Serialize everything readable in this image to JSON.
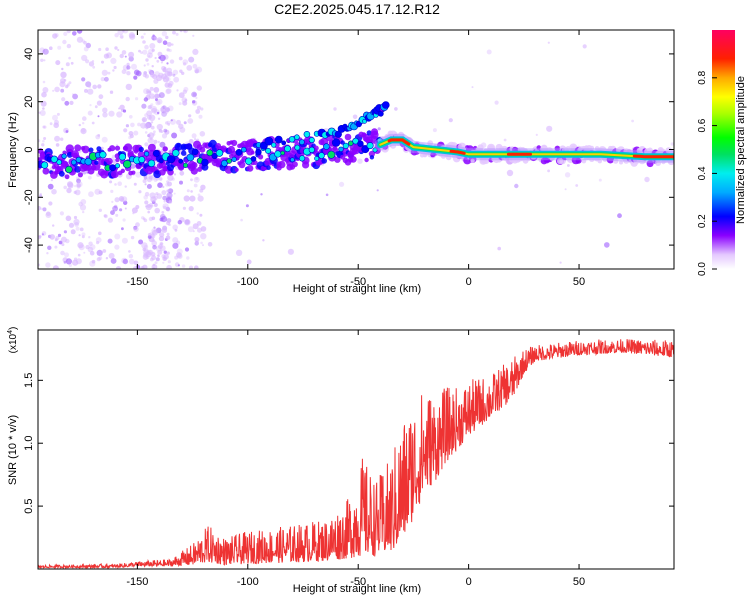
{
  "chart_data": [
    {
      "type": "heatmap",
      "title": "C2E2.2025.045.17.12.R12",
      "xlabel": "Height of straight line (km)",
      "ylabel": "Frequency (Hz)",
      "xlim": [
        -195,
        93
      ],
      "ylim": [
        -50,
        50
      ],
      "xticks": [
        -150,
        -100,
        -50,
        0,
        50
      ],
      "yticks": [
        -40,
        -20,
        0,
        20,
        40
      ],
      "colorbar": {
        "label": "Normalized spectral amplitude",
        "range": [
          0.0,
          1.0
        ],
        "ticks": [
          0.0,
          0.2,
          0.4,
          0.6,
          0.8
        ]
      },
      "ridge": [
        {
          "x": -195,
          "y": -6
        },
        {
          "x": -170,
          "y": -5
        },
        {
          "x": -150,
          "y": -5
        },
        {
          "x": -130,
          "y": -4
        },
        {
          "x": -110,
          "y": -3
        },
        {
          "x": -90,
          "y": -2
        },
        {
          "x": -70,
          "y": -1
        },
        {
          "x": -50,
          "y": 1
        },
        {
          "x": -40,
          "y": 2
        },
        {
          "x": -35,
          "y": 4
        },
        {
          "x": -30,
          "y": 4
        },
        {
          "x": -25,
          "y": 1
        },
        {
          "x": -15,
          "y": 0
        },
        {
          "x": -5,
          "y": -1
        },
        {
          "x": 0,
          "y": -2
        },
        {
          "x": 20,
          "y": -2
        },
        {
          "x": 40,
          "y": -2
        },
        {
          "x": 60,
          "y": -2
        },
        {
          "x": 80,
          "y": -3
        },
        {
          "x": 93,
          "y": -3
        }
      ],
      "upper_branch": [
        {
          "x": -95,
          "y": 2
        },
        {
          "x": -80,
          "y": 4
        },
        {
          "x": -65,
          "y": 6
        },
        {
          "x": -55,
          "y": 9
        },
        {
          "x": -48,
          "y": 12
        },
        {
          "x": -42,
          "y": 15
        },
        {
          "x": -37,
          "y": 18
        }
      ]
    },
    {
      "type": "line",
      "xlabel": "Height of straight line (km)",
      "ylabel": "SNR (10 * v/v)",
      "y_multiplier": "(x10",
      "y_multiplier_exp": "4",
      "y_multiplier_close": ")",
      "xlim": [
        -195,
        93
      ],
      "ylim": [
        0,
        1.9
      ],
      "xticks": [
        -150,
        -100,
        -50,
        0,
        50
      ],
      "yticks": [
        0.5,
        1.0,
        1.5
      ],
      "ytick_labels": [
        "0.5",
        "1.0",
        "1.5"
      ],
      "series": [
        {
          "name": "SNR",
          "color": "#ee3333",
          "envelope": [
            {
              "x": -195,
              "low": 0.01,
              "high": 0.03
            },
            {
              "x": -160,
              "low": 0.01,
              "high": 0.04
            },
            {
              "x": -150,
              "low": 0.02,
              "high": 0.06
            },
            {
              "x": -135,
              "low": 0.02,
              "high": 0.08
            },
            {
              "x": -125,
              "low": 0.03,
              "high": 0.2
            },
            {
              "x": -118,
              "low": 0.05,
              "high": 0.35
            },
            {
              "x": -110,
              "low": 0.03,
              "high": 0.25
            },
            {
              "x": -100,
              "low": 0.04,
              "high": 0.3
            },
            {
              "x": -80,
              "low": 0.05,
              "high": 0.35
            },
            {
              "x": -65,
              "low": 0.06,
              "high": 0.4
            },
            {
              "x": -55,
              "low": 0.08,
              "high": 0.55
            },
            {
              "x": -48,
              "low": 0.1,
              "high": 0.9
            },
            {
              "x": -42,
              "low": 0.1,
              "high": 0.7
            },
            {
              "x": -35,
              "low": 0.12,
              "high": 0.9
            },
            {
              "x": -30,
              "low": 0.2,
              "high": 1.2
            },
            {
              "x": -25,
              "low": 0.4,
              "high": 1.35
            },
            {
              "x": -20,
              "low": 0.6,
              "high": 1.45
            },
            {
              "x": -15,
              "low": 0.7,
              "high": 1.4
            },
            {
              "x": -10,
              "low": 0.85,
              "high": 1.45
            },
            {
              "x": -5,
              "low": 0.95,
              "high": 1.45
            },
            {
              "x": 0,
              "low": 1.05,
              "high": 1.5
            },
            {
              "x": 10,
              "low": 1.2,
              "high": 1.55
            },
            {
              "x": 20,
              "low": 1.35,
              "high": 1.68
            },
            {
              "x": 25,
              "low": 1.55,
              "high": 1.75
            },
            {
              "x": 30,
              "low": 1.65,
              "high": 1.78
            },
            {
              "x": 50,
              "low": 1.7,
              "high": 1.82
            },
            {
              "x": 70,
              "low": 1.72,
              "high": 1.83
            },
            {
              "x": 93,
              "low": 1.68,
              "high": 1.82
            }
          ]
        }
      ]
    }
  ]
}
